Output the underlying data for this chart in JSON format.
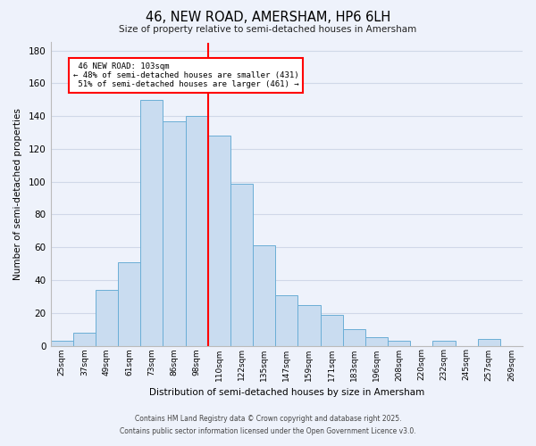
{
  "title": "46, NEW ROAD, AMERSHAM, HP6 6LH",
  "subtitle": "Size of property relative to semi-detached houses in Amersham",
  "xlabel": "Distribution of semi-detached houses by size in Amersham",
  "ylabel": "Number of semi-detached properties",
  "categories": [
    "25sqm",
    "37sqm",
    "49sqm",
    "61sqm",
    "73sqm",
    "86sqm",
    "98sqm",
    "110sqm",
    "122sqm",
    "135sqm",
    "147sqm",
    "159sqm",
    "171sqm",
    "183sqm",
    "196sqm",
    "208sqm",
    "220sqm",
    "232sqm",
    "245sqm",
    "257sqm",
    "269sqm"
  ],
  "values": [
    3,
    8,
    34,
    51,
    150,
    137,
    140,
    128,
    99,
    61,
    31,
    25,
    19,
    10,
    5,
    3,
    0,
    3,
    0,
    4,
    0
  ],
  "bar_color": "#c9dcf0",
  "bar_edge_color": "#6baed6",
  "background_color": "#eef2fb",
  "grid_color": "#d0d8e8",
  "property_label": "46 NEW ROAD: 103sqm",
  "pct_smaller": 48,
  "count_smaller": 431,
  "pct_larger": 51,
  "count_larger": 461,
  "vline_index": 6.5,
  "ylim": [
    0,
    185
  ],
  "yticks": [
    0,
    20,
    40,
    60,
    80,
    100,
    120,
    140,
    160,
    180
  ],
  "footnote1": "Contains HM Land Registry data © Crown copyright and database right 2025.",
  "footnote2": "Contains public sector information licensed under the Open Government Licence v3.0."
}
